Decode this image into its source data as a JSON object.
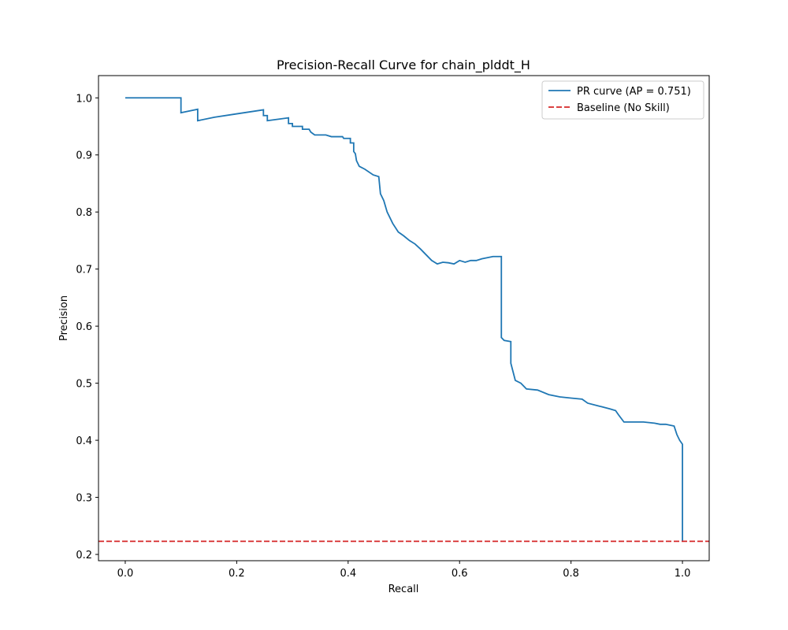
{
  "chart_data": {
    "type": "line",
    "title": "Precision-Recall Curve for chain_plddt_H",
    "xlabel": "Recall",
    "ylabel": "Precision",
    "xlim": [
      -0.048,
      1.048
    ],
    "ylim": [
      0.189,
      1.039
    ],
    "xticks": [
      0.0,
      0.2,
      0.4,
      0.6,
      0.8,
      1.0
    ],
    "xtick_labels": [
      "0.0",
      "0.2",
      "0.4",
      "0.6",
      "0.8",
      "1.0"
    ],
    "yticks": [
      0.2,
      0.3,
      0.4,
      0.5,
      0.6,
      0.7,
      0.8,
      0.9,
      1.0
    ],
    "ytick_labels": [
      "0.2",
      "0.3",
      "0.4",
      "0.5",
      "0.6",
      "0.7",
      "0.8",
      "0.9",
      "1.0"
    ],
    "grid": false,
    "legend_position": "top-right",
    "series": [
      {
        "name": "PR curve (AP = 0.751)",
        "color": "#1f77b4",
        "style": "solid",
        "step": true,
        "points": [
          [
            0.0,
            1.0
          ],
          [
            0.1,
            1.0
          ],
          [
            0.1,
            0.974
          ],
          [
            0.13,
            0.98
          ],
          [
            0.13,
            0.96
          ],
          [
            0.16,
            0.966
          ],
          [
            0.2,
            0.972
          ],
          [
            0.248,
            0.979
          ],
          [
            0.248,
            0.969
          ],
          [
            0.255,
            0.969
          ],
          [
            0.255,
            0.96
          ],
          [
            0.293,
            0.965
          ],
          [
            0.293,
            0.955
          ],
          [
            0.3,
            0.955
          ],
          [
            0.3,
            0.95
          ],
          [
            0.318,
            0.95
          ],
          [
            0.318,
            0.945
          ],
          [
            0.33,
            0.945
          ],
          [
            0.333,
            0.94
          ],
          [
            0.34,
            0.935
          ],
          [
            0.36,
            0.935
          ],
          [
            0.37,
            0.932
          ],
          [
            0.39,
            0.932
          ],
          [
            0.392,
            0.929
          ],
          [
            0.404,
            0.929
          ],
          [
            0.404,
            0.921
          ],
          [
            0.41,
            0.921
          ],
          [
            0.41,
            0.906
          ],
          [
            0.413,
            0.902
          ],
          [
            0.415,
            0.89
          ],
          [
            0.42,
            0.88
          ],
          [
            0.43,
            0.875
          ],
          [
            0.445,
            0.865
          ],
          [
            0.455,
            0.862
          ],
          [
            0.458,
            0.832
          ],
          [
            0.464,
            0.82
          ],
          [
            0.47,
            0.8
          ],
          [
            0.48,
            0.78
          ],
          [
            0.49,
            0.765
          ],
          [
            0.5,
            0.758
          ],
          [
            0.51,
            0.75
          ],
          [
            0.52,
            0.744
          ],
          [
            0.53,
            0.735
          ],
          [
            0.54,
            0.725
          ],
          [
            0.55,
            0.715
          ],
          [
            0.56,
            0.709
          ],
          [
            0.57,
            0.712
          ],
          [
            0.58,
            0.711
          ],
          [
            0.59,
            0.709
          ],
          [
            0.6,
            0.715
          ],
          [
            0.61,
            0.712
          ],
          [
            0.62,
            0.715
          ],
          [
            0.63,
            0.715
          ],
          [
            0.64,
            0.718
          ],
          [
            0.66,
            0.722
          ],
          [
            0.675,
            0.722
          ],
          [
            0.675,
            0.58
          ],
          [
            0.68,
            0.575
          ],
          [
            0.692,
            0.573
          ],
          [
            0.692,
            0.535
          ],
          [
            0.7,
            0.505
          ],
          [
            0.71,
            0.5
          ],
          [
            0.72,
            0.49
          ],
          [
            0.74,
            0.488
          ],
          [
            0.76,
            0.48
          ],
          [
            0.78,
            0.476
          ],
          [
            0.8,
            0.474
          ],
          [
            0.82,
            0.472
          ],
          [
            0.83,
            0.465
          ],
          [
            0.85,
            0.46
          ],
          [
            0.87,
            0.455
          ],
          [
            0.88,
            0.452
          ],
          [
            0.885,
            0.445
          ],
          [
            0.895,
            0.432
          ],
          [
            0.91,
            0.432
          ],
          [
            0.93,
            0.432
          ],
          [
            0.95,
            0.43
          ],
          [
            0.96,
            0.428
          ],
          [
            0.97,
            0.428
          ],
          [
            0.985,
            0.425
          ],
          [
            0.99,
            0.41
          ],
          [
            0.995,
            0.4
          ],
          [
            1.0,
            0.393
          ],
          [
            1.0,
            0.223
          ]
        ]
      },
      {
        "name": "Baseline (No Skill)",
        "color": "#d62728",
        "style": "dashed",
        "y": 0.223
      }
    ]
  }
}
